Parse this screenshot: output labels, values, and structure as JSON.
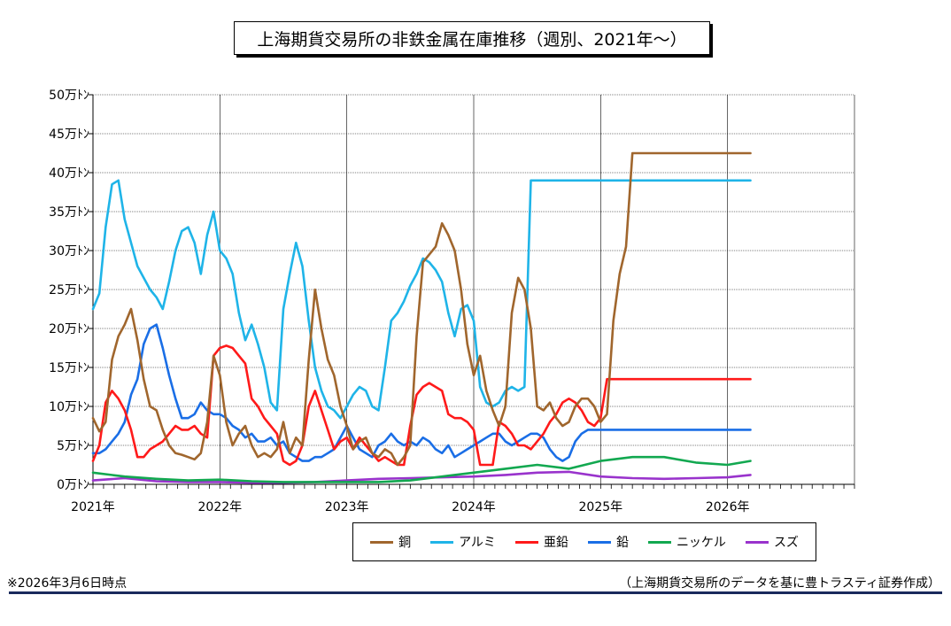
{
  "title": "上海期貨交易所の非鉄金属在庫推移（週別、2021年～）",
  "footnote": "※2026年3月6日時点",
  "source": "（上海期貨交易所のデータを基に豊トラスティ証券作成）",
  "chart_data": {
    "type": "line",
    "y_unit_suffix": "万ﾄﾝ",
    "ylim": [
      0,
      50
    ],
    "ytick_values": [
      0,
      5,
      10,
      15,
      20,
      25,
      30,
      35,
      40,
      45,
      50
    ],
    "ytick_labels": [
      "0万ﾄﾝ",
      "5万ﾄﾝ",
      "10万ﾄﾝ",
      "15万ﾄﾝ",
      "20万ﾄﾝ",
      "25万ﾄﾝ",
      "30万ﾄﾝ",
      "35万ﾄﾝ",
      "40万ﾄﾝ",
      "45万ﾄﾝ",
      "50万ﾄﾝ"
    ],
    "xlim": [
      2021.0,
      2027.0
    ],
    "xtick_values": [
      2021,
      2022,
      2023,
      2024,
      2025,
      2026
    ],
    "xtick_labels": [
      "2021年",
      "2022年",
      "2023年",
      "2024年",
      "2025年",
      "2026年"
    ],
    "grid": true,
    "legend_position": "bottom",
    "series": [
      {
        "name": "銅",
        "color": "#a0662d",
        "x": [
          2021.0,
          2021.05,
          2021.1,
          2021.15,
          2021.2,
          2021.25,
          2021.3,
          2021.35,
          2021.4,
          2021.45,
          2021.5,
          2021.55,
          2021.6,
          2021.65,
          2021.7,
          2021.75,
          2021.8,
          2021.85,
          2021.9,
          2021.95,
          2022.0,
          2022.05,
          2022.1,
          2022.15,
          2022.2,
          2022.25,
          2022.3,
          2022.35,
          2022.4,
          2022.45,
          2022.5,
          2022.55,
          2022.6,
          2022.65,
          2022.7,
          2022.75,
          2022.8,
          2022.85,
          2022.9,
          2022.95,
          2023.0,
          2023.05,
          2023.1,
          2023.15,
          2023.2,
          2023.25,
          2023.3,
          2023.35,
          2023.4,
          2023.45,
          2023.5,
          2023.55,
          2023.6,
          2023.65,
          2023.7,
          2023.75,
          2023.8,
          2023.85,
          2023.9,
          2023.95,
          2024.0,
          2024.05,
          2024.1,
          2024.15,
          2024.2,
          2024.25,
          2024.3,
          2024.35,
          2024.4,
          2024.45,
          2024.5,
          2024.55,
          2024.6,
          2024.65,
          2024.7,
          2024.75,
          2024.8,
          2024.85,
          2024.9,
          2024.95,
          2025.0,
          2025.05,
          2025.1,
          2025.15,
          2025.2,
          2025.25,
          2025.3,
          2025.35,
          2025.4,
          2025.45,
          2025.5,
          2025.55,
          2025.6,
          2025.65,
          2025.7,
          2025.75,
          2025.8,
          2025.85,
          2025.9,
          2025.95,
          2026.0,
          2026.05,
          2026.1,
          2026.15,
          2026.18
        ],
        "y": [
          8.5,
          6.8,
          8.0,
          16.0,
          19.0,
          20.5,
          22.5,
          18.5,
          13.5,
          10.0,
          9.5,
          7.0,
          5.0,
          4.0,
          3.8,
          3.5,
          3.2,
          4.0,
          8.0,
          16.5,
          14.0,
          8.0,
          5.0,
          6.5,
          7.5,
          5.0,
          3.5,
          4.0,
          3.5,
          4.5,
          8.0,
          4.0,
          6.0,
          5.0,
          16.0,
          25.0,
          20.0,
          16.0,
          14.0,
          10.0,
          7.5,
          4.5,
          5.5,
          6.0,
          4.0,
          3.5,
          4.5,
          4.0,
          2.5,
          3.5,
          5.0,
          19.0,
          28.5,
          29.5,
          30.5,
          33.5,
          32.0,
          30.0,
          25.0,
          18.0,
          14.0,
          16.5,
          12.0,
          9.5,
          7.5,
          10.0,
          22.0,
          26.5,
          25.0,
          20.0,
          10.0,
          9.5,
          10.5,
          8.5,
          7.5,
          8.0,
          10.0,
          11.0,
          11.0,
          10.0,
          8.0,
          9.0,
          21.0,
          27.0,
          30.5,
          42.5,
          42.5,
          42.5,
          42.5,
          42.5,
          42.5,
          42.5,
          42.5,
          42.5,
          42.5,
          42.5,
          42.5,
          42.5,
          42.5,
          42.5,
          42.5,
          42.5,
          42.5,
          42.5,
          42.5
        ]
      },
      {
        "name": "アルミ",
        "color": "#1fb4e8",
        "x": [
          2021.0,
          2021.05,
          2021.1,
          2021.15,
          2021.2,
          2021.25,
          2021.3,
          2021.35,
          2021.4,
          2021.45,
          2021.5,
          2021.55,
          2021.6,
          2021.65,
          2021.7,
          2021.75,
          2021.8,
          2021.85,
          2021.9,
          2021.95,
          2022.0,
          2022.05,
          2022.1,
          2022.15,
          2022.2,
          2022.25,
          2022.3,
          2022.35,
          2022.4,
          2022.45,
          2022.5,
          2022.55,
          2022.6,
          2022.65,
          2022.7,
          2022.75,
          2022.8,
          2022.85,
          2022.9,
          2022.95,
          2023.0,
          2023.05,
          2023.1,
          2023.15,
          2023.2,
          2023.25,
          2023.3,
          2023.35,
          2023.4,
          2023.45,
          2023.5,
          2023.55,
          2023.6,
          2023.65,
          2023.7,
          2023.75,
          2023.8,
          2023.85,
          2023.9,
          2023.95,
          2024.0,
          2024.05,
          2024.1,
          2024.15,
          2024.2,
          2024.25,
          2024.3,
          2024.35,
          2024.4,
          2024.45,
          2024.5,
          2024.55,
          2024.6,
          2024.65,
          2024.7,
          2024.75,
          2024.8,
          2024.85,
          2024.9,
          2024.95,
          2025.0,
          2025.05,
          2025.1,
          2025.15,
          2025.2,
          2025.25,
          2025.3,
          2025.35,
          2025.4,
          2025.45,
          2025.5,
          2025.55,
          2025.6,
          2025.65,
          2025.7,
          2025.75,
          2025.8,
          2025.85,
          2025.9,
          2025.95,
          2026.0,
          2026.05,
          2026.1,
          2026.15,
          2026.18
        ],
        "y": [
          22.5,
          24.5,
          33.0,
          38.5,
          39.0,
          34.0,
          31.0,
          28.0,
          26.5,
          25.0,
          24.0,
          22.5,
          26.0,
          30.0,
          32.5,
          33.0,
          31.0,
          27.0,
          32.0,
          35.0,
          30.0,
          29.0,
          27.0,
          22.0,
          18.5,
          20.5,
          18.0,
          15.0,
          10.5,
          9.5,
          22.5,
          27.0,
          31.0,
          28.0,
          21.0,
          15.0,
          12.0,
          10.0,
          9.5,
          8.5,
          10.0,
          11.5,
          12.5,
          12.0,
          10.0,
          9.5,
          15.0,
          21.0,
          22.0,
          23.5,
          25.5,
          27.0,
          29.0,
          28.5,
          27.5,
          26.0,
          22.0,
          19.0,
          22.5,
          23.0,
          21.0,
          12.5,
          10.5,
          10.0,
          10.5,
          12.0,
          12.5,
          12.0,
          12.5,
          39.0,
          39.0,
          39.0,
          39.0,
          39.0,
          39.0,
          39.0,
          39.0,
          39.0,
          39.0,
          39.0,
          39.0,
          39.0,
          39.0,
          39.0,
          39.0,
          39.0,
          39.0,
          39.0,
          39.0,
          39.0,
          39.0,
          39.0,
          39.0,
          39.0,
          39.0,
          39.0,
          39.0,
          39.0,
          39.0,
          39.0,
          39.0,
          39.0,
          39.0,
          39.0,
          39.0
        ]
      },
      {
        "name": "亜鉛",
        "color": "#ff1a1a",
        "x": [
          2021.0,
          2021.05,
          2021.1,
          2021.15,
          2021.2,
          2021.25,
          2021.3,
          2021.35,
          2021.4,
          2021.45,
          2021.5,
          2021.55,
          2021.6,
          2021.65,
          2021.7,
          2021.75,
          2021.8,
          2021.85,
          2021.9,
          2021.95,
          2022.0,
          2022.05,
          2022.1,
          2022.15,
          2022.2,
          2022.25,
          2022.3,
          2022.35,
          2022.4,
          2022.45,
          2022.5,
          2022.55,
          2022.6,
          2022.65,
          2022.7,
          2022.75,
          2022.8,
          2022.85,
          2022.9,
          2022.95,
          2023.0,
          2023.05,
          2023.1,
          2023.15,
          2023.2,
          2023.25,
          2023.3,
          2023.35,
          2023.4,
          2023.45,
          2023.5,
          2023.55,
          2023.6,
          2023.65,
          2023.7,
          2023.75,
          2023.8,
          2023.85,
          2023.9,
          2023.95,
          2024.0,
          2024.05,
          2024.1,
          2024.15,
          2024.2,
          2024.25,
          2024.3,
          2024.35,
          2024.4,
          2024.45,
          2024.5,
          2024.55,
          2024.6,
          2024.65,
          2024.7,
          2024.75,
          2024.8,
          2024.85,
          2024.9,
          2024.95,
          2025.0,
          2025.05,
          2025.1,
          2025.15,
          2025.2,
          2025.25,
          2025.3,
          2025.35,
          2025.4,
          2025.45,
          2025.5,
          2025.55,
          2025.6,
          2025.65,
          2025.7,
          2025.75,
          2025.8,
          2025.85,
          2025.9,
          2025.95,
          2026.0,
          2026.05,
          2026.1,
          2026.15,
          2026.18
        ],
        "y": [
          3.0,
          5.0,
          10.5,
          12.0,
          11.0,
          9.5,
          7.0,
          3.5,
          3.5,
          4.5,
          5.0,
          5.5,
          6.5,
          7.5,
          7.0,
          7.0,
          7.5,
          6.5,
          6.0,
          16.5,
          17.5,
          17.8,
          17.5,
          16.5,
          15.5,
          11.0,
          10.0,
          8.5,
          7.5,
          6.5,
          3.0,
          2.5,
          3.0,
          5.0,
          10.0,
          12.0,
          9.5,
          7.0,
          4.5,
          5.5,
          6.0,
          4.5,
          6.0,
          5.0,
          4.0,
          3.0,
          3.5,
          3.0,
          2.5,
          2.5,
          7.5,
          11.5,
          12.5,
          13.0,
          12.5,
          12.0,
          9.0,
          8.5,
          8.5,
          8.0,
          7.0,
          2.5,
          2.5,
          2.5,
          8.0,
          7.5,
          6.5,
          5.0,
          5.0,
          4.5,
          5.5,
          6.5,
          8.0,
          9.0,
          10.5,
          11.0,
          10.5,
          9.5,
          8.0,
          7.5,
          8.5,
          13.5,
          13.5,
          13.5,
          13.5,
          13.5,
          13.5,
          13.5,
          13.5,
          13.5,
          13.5,
          13.5,
          13.5,
          13.5,
          13.5,
          13.5,
          13.5,
          13.5,
          13.5,
          13.5,
          13.5,
          13.5,
          13.5,
          13.5,
          13.5
        ]
      },
      {
        "name": "鉛",
        "color": "#1a6ee6",
        "x": [
          2021.0,
          2021.05,
          2021.1,
          2021.15,
          2021.2,
          2021.25,
          2021.3,
          2021.35,
          2021.4,
          2021.45,
          2021.5,
          2021.55,
          2021.6,
          2021.65,
          2021.7,
          2021.75,
          2021.8,
          2021.85,
          2021.9,
          2021.95,
          2022.0,
          2022.05,
          2022.1,
          2022.15,
          2022.2,
          2022.25,
          2022.3,
          2022.35,
          2022.4,
          2022.45,
          2022.5,
          2022.55,
          2022.6,
          2022.65,
          2022.7,
          2022.75,
          2022.8,
          2022.85,
          2022.9,
          2022.95,
          2023.0,
          2023.05,
          2023.1,
          2023.15,
          2023.2,
          2023.25,
          2023.3,
          2023.35,
          2023.4,
          2023.45,
          2023.5,
          2023.55,
          2023.6,
          2023.65,
          2023.7,
          2023.75,
          2023.8,
          2023.85,
          2023.9,
          2023.95,
          2024.0,
          2024.05,
          2024.1,
          2024.15,
          2024.2,
          2024.25,
          2024.3,
          2024.35,
          2024.4,
          2024.45,
          2024.5,
          2024.55,
          2024.6,
          2024.65,
          2024.7,
          2024.75,
          2024.8,
          2024.85,
          2024.9,
          2024.95,
          2025.0,
          2025.05,
          2025.1,
          2025.15,
          2025.2,
          2025.25,
          2025.3,
          2025.35,
          2025.4,
          2025.45,
          2025.5,
          2025.55,
          2025.6,
          2025.65,
          2025.7,
          2025.75,
          2025.8,
          2025.85,
          2025.9,
          2025.95,
          2026.0,
          2026.05,
          2026.1,
          2026.15,
          2026.18
        ],
        "y": [
          4.0,
          4.0,
          4.5,
          5.5,
          6.5,
          8.0,
          11.5,
          13.5,
          18.0,
          20.0,
          20.5,
          17.5,
          14.0,
          11.0,
          8.5,
          8.5,
          9.0,
          10.5,
          9.5,
          9.0,
          9.0,
          8.5,
          7.5,
          7.0,
          6.0,
          6.5,
          5.5,
          5.5,
          6.0,
          5.0,
          5.5,
          4.0,
          3.5,
          3.0,
          3.0,
          3.5,
          3.5,
          4.0,
          4.5,
          6.0,
          7.5,
          6.0,
          4.5,
          4.0,
          3.5,
          5.0,
          5.5,
          6.5,
          5.5,
          5.0,
          5.5,
          5.0,
          6.0,
          5.5,
          4.5,
          4.0,
          5.0,
          3.5,
          4.0,
          4.5,
          5.0,
          5.5,
          6.0,
          6.5,
          6.5,
          5.5,
          5.0,
          5.5,
          6.0,
          6.5,
          6.5,
          6.0,
          4.5,
          3.5,
          3.0,
          3.5,
          5.5,
          6.5,
          7.0,
          7.0,
          7.0,
          7.0,
          7.0,
          7.0,
          7.0,
          7.0,
          7.0,
          7.0,
          7.0,
          7.0,
          7.0,
          7.0,
          7.0,
          7.0,
          7.0,
          7.0,
          7.0,
          7.0,
          7.0,
          7.0,
          7.0,
          7.0,
          7.0,
          7.0,
          7.0
        ]
      },
      {
        "name": "ニッケル",
        "color": "#12a850",
        "x": [
          2021.0,
          2021.25,
          2021.5,
          2021.75,
          2022.0,
          2022.25,
          2022.5,
          2022.75,
          2023.0,
          2023.25,
          2023.5,
          2023.75,
          2024.0,
          2024.25,
          2024.5,
          2024.75,
          2025.0,
          2025.25,
          2025.5,
          2025.75,
          2026.0,
          2026.18
        ],
        "y": [
          1.5,
          1.0,
          0.7,
          0.5,
          0.6,
          0.4,
          0.3,
          0.3,
          0.3,
          0.3,
          0.5,
          1.0,
          1.5,
          2.0,
          2.5,
          2.0,
          3.0,
          3.5,
          3.5,
          2.8,
          2.5,
          3.0
        ]
      },
      {
        "name": "スズ",
        "color": "#9933cc",
        "x": [
          2021.0,
          2021.25,
          2021.5,
          2021.75,
          2022.0,
          2022.25,
          2022.5,
          2022.75,
          2023.0,
          2023.25,
          2023.5,
          2023.75,
          2024.0,
          2024.25,
          2024.5,
          2024.75,
          2025.0,
          2025.25,
          2025.5,
          2025.75,
          2026.0,
          2026.18
        ],
        "y": [
          0.5,
          0.8,
          0.4,
          0.3,
          0.3,
          0.2,
          0.2,
          0.3,
          0.5,
          0.7,
          0.8,
          0.9,
          1.0,
          1.2,
          1.5,
          1.6,
          1.0,
          0.8,
          0.7,
          0.8,
          0.9,
          1.2
        ]
      }
    ]
  }
}
